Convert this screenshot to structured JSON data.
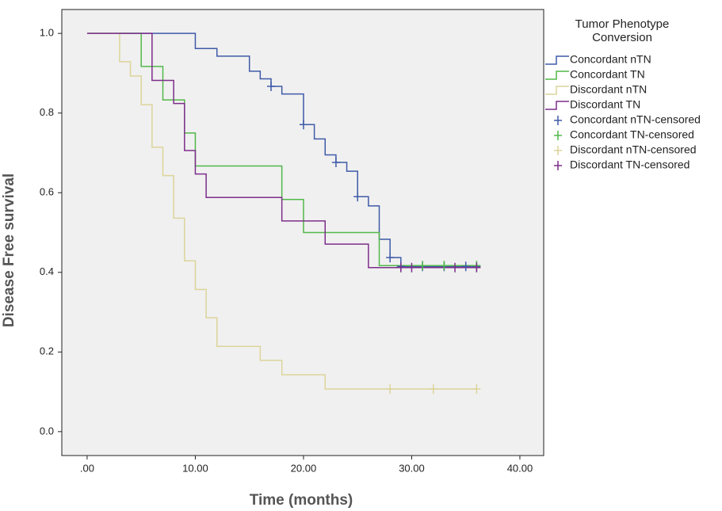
{
  "chart_data": {
    "type": "step",
    "x_label": "Time (months)",
    "y_label": "Disease Free survival",
    "legend_title": "Tumor Phenotype Conversion",
    "xlim": [
      -2.34,
      42.2
    ],
    "ylim": [
      -0.06,
      1.06
    ],
    "xticks": [
      {
        "value": 0,
        "label": ".00"
      },
      {
        "value": 10,
        "label": "10.00"
      },
      {
        "value": 20,
        "label": "20.00"
      },
      {
        "value": 30,
        "label": "30.00"
      },
      {
        "value": 40,
        "label": "40.00"
      }
    ],
    "yticks": [
      {
        "value": 0,
        "label": "0.0"
      },
      0.2,
      0.4,
      0.6,
      0.8,
      {
        "value": 1,
        "label": "1.0"
      }
    ],
    "series": [
      {
        "name": "Concordant nTN",
        "color": "#3f5aa8",
        "x": [
          0,
          10,
          12,
          15,
          16,
          17,
          18,
          20,
          21,
          22,
          23,
          24,
          25,
          26,
          27,
          28,
          29,
          36
        ],
        "values": [
          1.0,
          0.962,
          0.943,
          0.905,
          0.886,
          0.867,
          0.848,
          0.771,
          0.735,
          0.695,
          0.676,
          0.654,
          0.59,
          0.567,
          0.483,
          0.437,
          0.415,
          0.415
        ]
      },
      {
        "name": "Concordant TN",
        "color": "#52b849",
        "x": [
          0,
          5,
          7,
          9,
          10,
          18,
          20,
          27,
          36
        ],
        "values": [
          1.0,
          0.917,
          0.833,
          0.75,
          0.667,
          0.583,
          0.5,
          0.417,
          0.417
        ]
      },
      {
        "name": "Discordant nTN",
        "color": "#dcd49a",
        "x": [
          0,
          3,
          4,
          5,
          6,
          7,
          8,
          9,
          10,
          11,
          12,
          16,
          18,
          22,
          36
        ],
        "values": [
          1.0,
          0.929,
          0.893,
          0.821,
          0.714,
          0.643,
          0.536,
          0.429,
          0.357,
          0.286,
          0.214,
          0.179,
          0.143,
          0.107,
          0.107
        ]
      },
      {
        "name": "Discordant TN",
        "color": "#7d2e8a",
        "x": [
          0,
          6,
          8,
          9,
          10,
          11,
          18,
          22,
          26,
          36
        ],
        "values": [
          1.0,
          0.882,
          0.824,
          0.706,
          0.647,
          0.588,
          0.529,
          0.471,
          0.412,
          0.412
        ]
      },
      {
        "name": "Concordant nTN-censored",
        "color": "#3f5aa8",
        "censored": true,
        "x": [
          17,
          20,
          23,
          25,
          28,
          29,
          31,
          33,
          35,
          36
        ],
        "values": [
          0.867,
          0.771,
          0.676,
          0.59,
          0.437,
          0.415,
          0.415,
          0.415,
          0.415,
          0.415
        ]
      },
      {
        "name": "Concordant TN-censored",
        "color": "#52b849",
        "censored": true,
        "x": [
          31,
          33,
          36
        ],
        "values": [
          0.417,
          0.417,
          0.417
        ]
      },
      {
        "name": "Discordant nTN-censored",
        "color": "#dcd49a",
        "censored": true,
        "x": [
          28,
          32,
          36
        ],
        "values": [
          0.107,
          0.107,
          0.107
        ]
      },
      {
        "name": "Discordant TN-censored",
        "color": "#7d2e8a",
        "censored": true,
        "x": [
          29,
          30,
          34,
          36
        ],
        "values": [
          0.412,
          0.412,
          0.412,
          0.412
        ]
      }
    ]
  }
}
